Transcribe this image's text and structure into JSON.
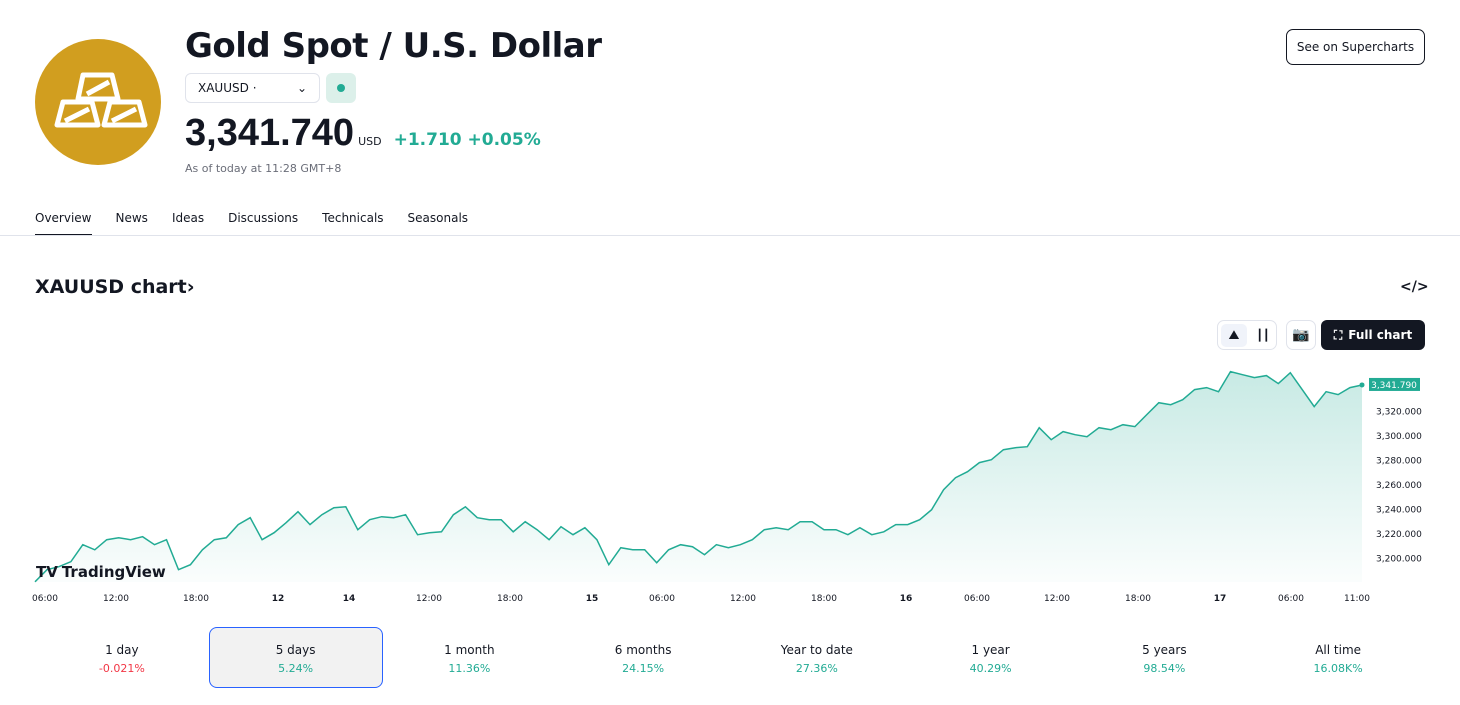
{
  "header": {
    "title": "Gold Spot / U.S. Dollar",
    "symbol": "XAUUSD",
    "symbol_dot": "·",
    "price": "3,341.740",
    "currency": "USD",
    "change": "+1.710",
    "change_pct": "+0.05%",
    "as_of": "As of today at 11:28 GMT+8",
    "logo_icon": "gold-bars-icon",
    "see_button": "See on Supercharts",
    "status_color": "#22ab94"
  },
  "tabs": [
    {
      "label": "Overview",
      "active": true
    },
    {
      "label": "News"
    },
    {
      "label": "Ideas"
    },
    {
      "label": "Discussions"
    },
    {
      "label": "Technicals"
    },
    {
      "label": "Seasonals"
    }
  ],
  "chart_section": {
    "title": "XAUUSD chart",
    "title_chevron": "›",
    "embed_icon": "</>",
    "full_chart": "Full chart",
    "watermark": "TradingView"
  },
  "chart_data": {
    "type": "area",
    "line_color": "#22ab94",
    "last_value_label": "3,341.790",
    "ylim": [
      3181,
      3354
    ],
    "y_ticks": [
      "3,320.000",
      "3,300.000",
      "3,280.000",
      "3,260.000",
      "3,240.000",
      "3,220.000",
      "3,200.000"
    ],
    "x_ticks": [
      "06:00",
      "12:00",
      "18:00",
      "12",
      "14",
      "12:00",
      "18:00",
      "15",
      "06:00",
      "12:00",
      "18:00",
      "16",
      "06:00",
      "12:00",
      "18:00",
      "17",
      "06:00",
      "11:00"
    ],
    "values": [
      3181.2,
      3191.0,
      3193.5,
      3197.6,
      3211.4,
      3207.3,
      3215.5,
      3217.1,
      3215.5,
      3218.0,
      3211.4,
      3215.5,
      3191.0,
      3195.1,
      3207.3,
      3215.5,
      3217.1,
      3227.8,
      3233.5,
      3215.5,
      3221.2,
      3229.4,
      3238.4,
      3227.8,
      3235.9,
      3241.6,
      3242.4,
      3223.7,
      3231.8,
      3234.3,
      3233.5,
      3235.9,
      3219.6,
      3221.2,
      3222.0,
      3235.9,
      3242.4,
      3233.5,
      3231.8,
      3231.8,
      3222.0,
      3230.2,
      3223.7,
      3215.5,
      3226.1,
      3219.6,
      3225.3,
      3215.5,
      3195.1,
      3209.0,
      3207.3,
      3207.3,
      3196.7,
      3207.3,
      3211.4,
      3209.8,
      3203.3,
      3211.4,
      3209.0,
      3211.4,
      3215.5,
      3223.7,
      3225.3,
      3223.7,
      3230.2,
      3230.2,
      3223.7,
      3223.7,
      3219.6,
      3225.3,
      3219.6,
      3222.0,
      3227.8,
      3227.8,
      3231.8,
      3240.0,
      3256.3,
      3266.1,
      3271.0,
      3278.4,
      3280.8,
      3289.0,
      3290.6,
      3291.4,
      3306.9,
      3297.1,
      3303.7,
      3301.2,
      3299.6,
      3306.9,
      3305.3,
      3309.4,
      3307.8,
      3317.6,
      3327.3,
      3325.7,
      3329.8,
      3338.0,
      3339.6,
      3336.3,
      3352.7,
      3350.2,
      3347.8,
      3349.4,
      3342.9,
      3351.8,
      3338.0,
      3324.1,
      3336.3,
      3333.9,
      3339.6,
      3341.8
    ]
  },
  "periods": [
    {
      "label": "1 day",
      "value": "-0.021%",
      "negative": true
    },
    {
      "label": "5 days",
      "value": "5.24%",
      "selected": true
    },
    {
      "label": "1 month",
      "value": "11.36%"
    },
    {
      "label": "6 months",
      "value": "24.15%"
    },
    {
      "label": "Year to date",
      "value": "27.36%"
    },
    {
      "label": "1 year",
      "value": "40.29%"
    },
    {
      "label": "5 years",
      "value": "98.54%"
    },
    {
      "label": "All time",
      "value": "16.08K%"
    }
  ]
}
